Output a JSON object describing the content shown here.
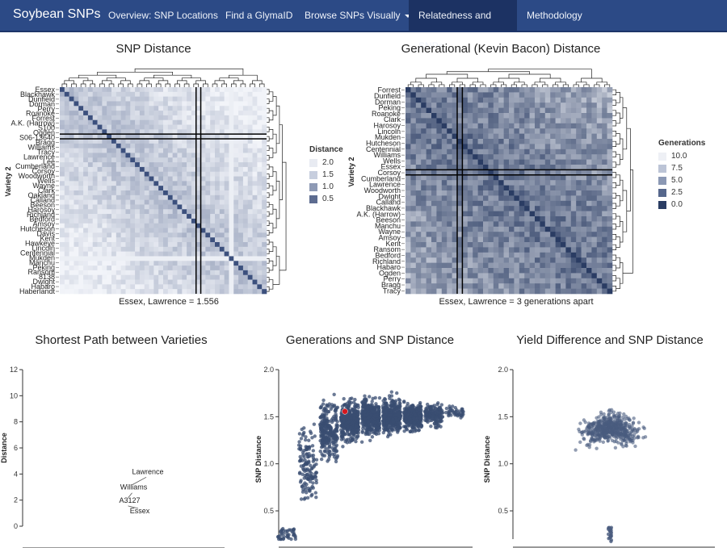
{
  "nav": {
    "brand": "Soybean SNPs",
    "items": [
      {
        "label": "Overview: SNP Locations",
        "active": false
      },
      {
        "label": "Find a GlymaID",
        "active": false
      },
      {
        "label": "Browse SNPs Visually",
        "active": false,
        "dropdown": true
      },
      {
        "label": "Relatedness and SNPs",
        "active": true
      },
      {
        "label": "Methodology",
        "active": false
      }
    ],
    "bg_color": "#2c4a86",
    "active_color": "#1c3263"
  },
  "heatmap_snp": {
    "title": "SNP Distance",
    "caption": "Essex, Lawrence = 1.556",
    "y_axis_title": "Variety 2",
    "legend_title": "Distance",
    "legend_items": [
      {
        "label": "2.0",
        "color": "#e8ebf2"
      },
      {
        "label": "1.5",
        "color": "#c7cede"
      },
      {
        "label": "1.0",
        "color": "#8e9ab5"
      },
      {
        "label": "0.5",
        "color": "#5d6c90"
      }
    ],
    "row_labels": [
      "Essex",
      "Blackhawk",
      "Dunfield",
      "Dorman",
      "Perry",
      "Roanoke",
      "Forrest",
      "A.K. (Harrow)",
      "S100",
      "Ogden",
      "S06-13640",
      "Bragg",
      "Williams",
      "Tracy",
      "Lawrence",
      "Lee",
      "Cumberland",
      "Corsoy",
      "Woodworth",
      "Wells",
      "Wayne",
      "Clark",
      "Oakland",
      "Calland",
      "Beeson",
      "Harosoy",
      "Richland",
      "Bedford",
      "Amsoy",
      "Hutcheson",
      "Davis",
      "Kent",
      "Hawkeye",
      "Lincoln",
      "Centennial",
      "Mukden",
      "Manchu",
      "Peking",
      "Ransom",
      "8138",
      "Dwight",
      "Habaro",
      "Haberlandt"
    ]
  },
  "heatmap_gen": {
    "title": "Generational (Kevin Bacon) Distance",
    "caption": "Essex, Lawrence = 3 generations apart",
    "y_axis_title": "Variety 2",
    "legend_title": "Generations",
    "legend_items": [
      {
        "label": "10.0",
        "color": "#eef0f5"
      },
      {
        "label": "7.5",
        "color": "#bcc4d6"
      },
      {
        "label": "5.0",
        "color": "#8b98b4"
      },
      {
        "label": "2.5",
        "color": "#56678c"
      },
      {
        "label": "0.0",
        "color": "#2a3c63"
      }
    ],
    "row_labels": [
      "Forrest",
      "Dunfield",
      "Dorman",
      "Peking",
      "Roanoke",
      "Clark",
      "Harosoy",
      "Lincoln",
      "Mukden",
      "Hutcheson",
      "Centennial",
      "Williams",
      "Wells",
      "Essex",
      "Corsoy",
      "Cumberland",
      "Lawrence",
      "Woodworth",
      "Dwight",
      "Calland",
      "Blackhawk",
      "A.K. (Harrow)",
      "Beeson",
      "Manchu",
      "Wayne",
      "Amsoy",
      "Kent",
      "Ransom",
      "Bedford",
      "Richland",
      "Habaro",
      "Ogden",
      "Perry",
      "Bragg",
      "Tracy"
    ]
  },
  "path_chart": {
    "title": "Shortest Path between Varieties",
    "y_axis_title": "Distance",
    "chart_data": {
      "type": "scatter",
      "title": "Shortest Path between Varieties",
      "ylabel": "Distance",
      "ylim": [
        0,
        12
      ],
      "yticks": [
        0,
        2,
        4,
        6,
        8,
        10,
        12
      ],
      "nodes": [
        {
          "label": "Lawrence",
          "x": 0.62,
          "y": 4
        },
        {
          "label": "Williams",
          "x": 0.55,
          "y": 2.8
        },
        {
          "label": "A3127",
          "x": 0.53,
          "y": 1.8
        },
        {
          "label": "Essex",
          "x": 0.58,
          "y": 1.0
        }
      ]
    }
  },
  "gen_scatter": {
    "title": "Generations and SNP Distance",
    "y_axis_title": "SNP Distance",
    "highlight_color": "#d4181f",
    "point_color": "#3a4d72",
    "chart_data": {
      "type": "scatter",
      "title": "Generations and SNP Distance",
      "ylabel": "SNP Distance",
      "ylim": [
        0.2,
        2.0
      ],
      "yticks": [
        0.5,
        1.0,
        1.5,
        2.0
      ],
      "highlight": {
        "x": 3,
        "y": 1.556,
        "label": "Essex, Lawrence"
      },
      "clusters": [
        {
          "x": 0,
          "y_center": 0.25,
          "spread": 0.08,
          "n": 40
        },
        {
          "x": 1,
          "y_center": 1.0,
          "spread": 0.45,
          "n": 140
        },
        {
          "x": 2,
          "y_center": 1.35,
          "spread": 0.3,
          "n": 260
        },
        {
          "x": 3,
          "y_center": 1.45,
          "spread": 0.2,
          "n": 380
        },
        {
          "x": 4,
          "y_center": 1.5,
          "spread": 0.18,
          "n": 420
        },
        {
          "x": 5,
          "y_center": 1.5,
          "spread": 0.18,
          "n": 380
        },
        {
          "x": 6,
          "y_center": 1.5,
          "spread": 0.15,
          "n": 320
        },
        {
          "x": 7,
          "y_center": 1.52,
          "spread": 0.12,
          "n": 150
        },
        {
          "x": 8,
          "y_center": 1.55,
          "spread": 0.06,
          "n": 40
        }
      ]
    }
  },
  "yield_scatter": {
    "title": "Yield Difference and SNP Distance",
    "y_axis_title": "SNP Distance",
    "point_color": "#4a5b7e",
    "chart_data": {
      "type": "scatter",
      "title": "Yield Difference and SNP Distance",
      "ylabel": "SNP Distance",
      "ylim": [
        0.2,
        2.0
      ],
      "yticks": [
        0.5,
        1.0,
        1.5,
        2.0
      ],
      "clusters": [
        {
          "x_center": 0,
          "y_center": 1.4,
          "n": 520
        },
        {
          "x_center": 0,
          "y_center": 0.25,
          "n": 20
        }
      ]
    }
  }
}
